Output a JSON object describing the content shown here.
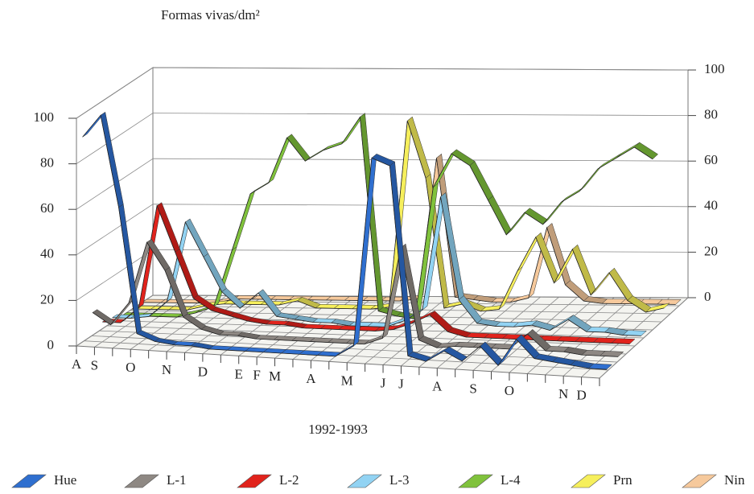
{
  "chart_data": {
    "type": "ribbon3d",
    "y_label": "Formas vivas/dm²",
    "x_label": "1992-1993",
    "categories": [
      "A",
      "S",
      null,
      "O",
      null,
      "N",
      null,
      "D",
      null,
      "E",
      "F",
      "M",
      null,
      "A",
      null,
      "M",
      null,
      "J",
      "J",
      null,
      "A",
      null,
      "S",
      null,
      "O",
      null,
      null,
      "N",
      "D",
      null
    ],
    "ylim": [
      0,
      100
    ],
    "yticks": [
      0,
      20,
      40,
      60,
      80,
      100
    ],
    "grid": true,
    "series": [
      {
        "name": "Hue",
        "color": "#2f6fcf",
        "values": [
          90,
          100,
          60,
          5,
          2,
          1,
          1,
          0,
          0,
          0,
          0,
          0,
          0,
          0,
          0,
          5,
          88,
          85,
          2,
          0,
          5,
          1,
          8,
          0,
          12,
          4,
          3,
          2,
          1,
          1
        ]
      },
      {
        "name": "L-1",
        "color": "#8e8883",
        "values": [
          10,
          5,
          15,
          42,
          30,
          10,
          5,
          3,
          3,
          2,
          2,
          2,
          2,
          2,
          2,
          2,
          5,
          45,
          5,
          2,
          3,
          3,
          3,
          3,
          10,
          3,
          3,
          2,
          2,
          2
        ]
      },
      {
        "name": "L-2",
        "color": "#e1231c",
        "values": [
          3,
          3,
          10,
          55,
          35,
          15,
          10,
          8,
          6,
          5,
          5,
          4,
          4,
          4,
          4,
          4,
          5,
          8,
          12,
          5,
          3,
          3,
          3,
          3,
          3,
          3,
          3,
          3,
          3,
          3
        ]
      },
      {
        "name": "L-3",
        "color": "#92d3f3",
        "values": [
          2,
          2,
          3,
          10,
          45,
          30,
          15,
          8,
          15,
          5,
          4,
          3,
          3,
          2,
          2,
          2,
          5,
          10,
          60,
          15,
          5,
          4,
          4,
          5,
          3,
          8,
          3,
          3,
          2,
          2
        ]
      },
      {
        "name": "L-4",
        "color": "#80c23c",
        "values": [
          0,
          0,
          0,
          0,
          2,
          5,
          30,
          55,
          60,
          80,
          70,
          75,
          78,
          90,
          5,
          3,
          2,
          60,
          75,
          70,
          55,
          40,
          50,
          45,
          55,
          60,
          70,
          75,
          80,
          75
        ]
      },
      {
        "name": "Prn",
        "color": "#f6ef5c",
        "values": [
          0,
          0,
          0,
          0,
          2,
          3,
          3,
          3,
          3,
          5,
          2,
          2,
          2,
          2,
          3,
          85,
          60,
          3,
          5,
          2,
          3,
          20,
          35,
          15,
          30,
          10,
          20,
          8,
          3,
          5
        ]
      },
      {
        "name": "Nin",
        "color": "#f6c99c",
        "values": [
          0,
          0,
          0,
          0,
          0,
          2,
          2,
          2,
          2,
          2,
          2,
          2,
          2,
          2,
          2,
          3,
          65,
          4,
          3,
          2,
          2,
          4,
          35,
          10,
          3,
          2,
          2,
          2,
          2,
          2
        ]
      }
    ]
  }
}
